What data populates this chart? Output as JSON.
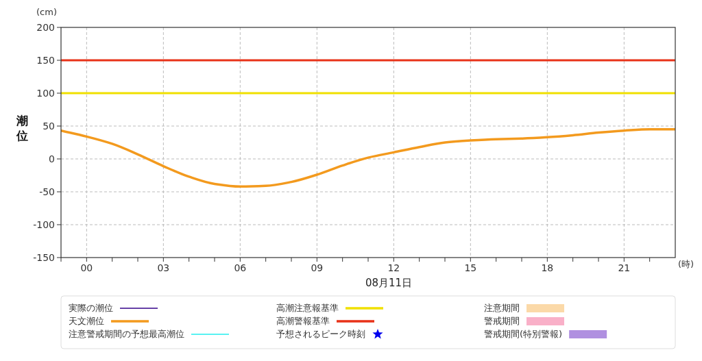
{
  "chart_data": {
    "type": "line",
    "xlabel": "(時)",
    "ylabel": "潮位",
    "annotations": [
      "(cm)",
      "08月11日"
    ],
    "xlim": [
      -1,
      23
    ],
    "xticks": [
      {
        "value": -1,
        "label": null
      },
      {
        "value": 0,
        "label": "00"
      },
      {
        "value": 1,
        "label": null
      },
      {
        "value": 2,
        "label": null
      },
      {
        "value": 3,
        "label": "03"
      },
      {
        "value": 4,
        "label": null
      },
      {
        "value": 5,
        "label": null
      },
      {
        "value": 6,
        "label": "06"
      },
      {
        "value": 7,
        "label": null
      },
      {
        "value": 8,
        "label": null
      },
      {
        "value": 9,
        "label": "09"
      },
      {
        "value": 10,
        "label": null
      },
      {
        "value": 11,
        "label": null
      },
      {
        "value": 12,
        "label": "12"
      },
      {
        "value": 13,
        "label": null
      },
      {
        "value": 14,
        "label": null
      },
      {
        "value": 15,
        "label": "15"
      },
      {
        "value": 16,
        "label": null
      },
      {
        "value": 17,
        "label": null
      },
      {
        "value": 18,
        "label": "18"
      },
      {
        "value": 19,
        "label": null
      },
      {
        "value": 20,
        "label": null
      },
      {
        "value": 21,
        "label": "21"
      },
      {
        "value": 22,
        "label": null
      }
    ],
    "ylim": [
      -150,
      200
    ],
    "yticks": [
      -150,
      -100,
      -50,
      0,
      50,
      100,
      150,
      200
    ],
    "grid": true,
    "legend": "bottom",
    "x": [
      -1,
      0,
      1,
      2,
      3,
      4,
      5,
      6,
      7,
      8,
      9,
      10,
      11,
      12,
      13,
      14,
      15,
      16,
      17,
      18,
      19,
      20,
      21,
      22,
      23
    ],
    "series": [
      {
        "name": "実際の潮位",
        "type": "line",
        "color": "#330088",
        "values": [
          null,
          null,
          null,
          null,
          null,
          null,
          null,
          null,
          null,
          null,
          null,
          null,
          null,
          null,
          null,
          null,
          null,
          null,
          null,
          null,
          null,
          null,
          null,
          null,
          null
        ]
      },
      {
        "name": "天文潮位",
        "color": "#f39a1e",
        "values": [
          43,
          34,
          23,
          7,
          -11,
          -27,
          -38,
          -42,
          -41,
          -35,
          -24,
          -10,
          2,
          10,
          18,
          25,
          28,
          30,
          31,
          33,
          36,
          40,
          43,
          45,
          45
        ]
      },
      {
        "name": "注意警戒期間の予想最高潮位",
        "type": "line",
        "color": "#22eeee",
        "values": [
          null,
          null,
          null,
          null,
          null,
          null,
          null,
          null,
          null,
          null,
          null,
          null,
          null,
          null,
          null,
          null,
          null,
          null,
          null,
          null,
          null,
          null,
          null,
          null,
          null
        ]
      },
      {
        "name": "予想されるピーク時刻",
        "type": "scatter",
        "marker": "star",
        "color": "#0000ee",
        "values": [
          null,
          null,
          null,
          null,
          null,
          null,
          null,
          null,
          null,
          null,
          null,
          null,
          null,
          null,
          null,
          null,
          null,
          null,
          null,
          null,
          null,
          null,
          null,
          null,
          null
        ]
      },
      {
        "name": "注意期間",
        "type": "area",
        "color": "#fbd9a8",
        "values": [
          null,
          null,
          null,
          null,
          null,
          null,
          null,
          null,
          null,
          null,
          null,
          null,
          null,
          null,
          null,
          null,
          null,
          null,
          null,
          null,
          null,
          null,
          null,
          null,
          null
        ]
      },
      {
        "name": "警戒期間",
        "type": "area",
        "color": "#f9b0c8",
        "values": [
          null,
          null,
          null,
          null,
          null,
          null,
          null,
          null,
          null,
          null,
          null,
          null,
          null,
          null,
          null,
          null,
          null,
          null,
          null,
          null,
          null,
          null,
          null,
          null,
          null
        ]
      },
      {
        "name": "警戒期間(特別警報)",
        "type": "area",
        "color": "#b090e0",
        "values": [
          null,
          null,
          null,
          null,
          null,
          null,
          null,
          null,
          null,
          null,
          null,
          null,
          null,
          null,
          null,
          null,
          null,
          null,
          null,
          null,
          null,
          null,
          null,
          null,
          null
        ]
      }
    ],
    "ref_lines": [
      {
        "axis": "y",
        "value": 100,
        "label": "高潮注意報基準",
        "color": "#f0e000"
      },
      {
        "axis": "y",
        "value": 150,
        "label": "高潮警報基準",
        "color": "#e83218"
      }
    ]
  }
}
